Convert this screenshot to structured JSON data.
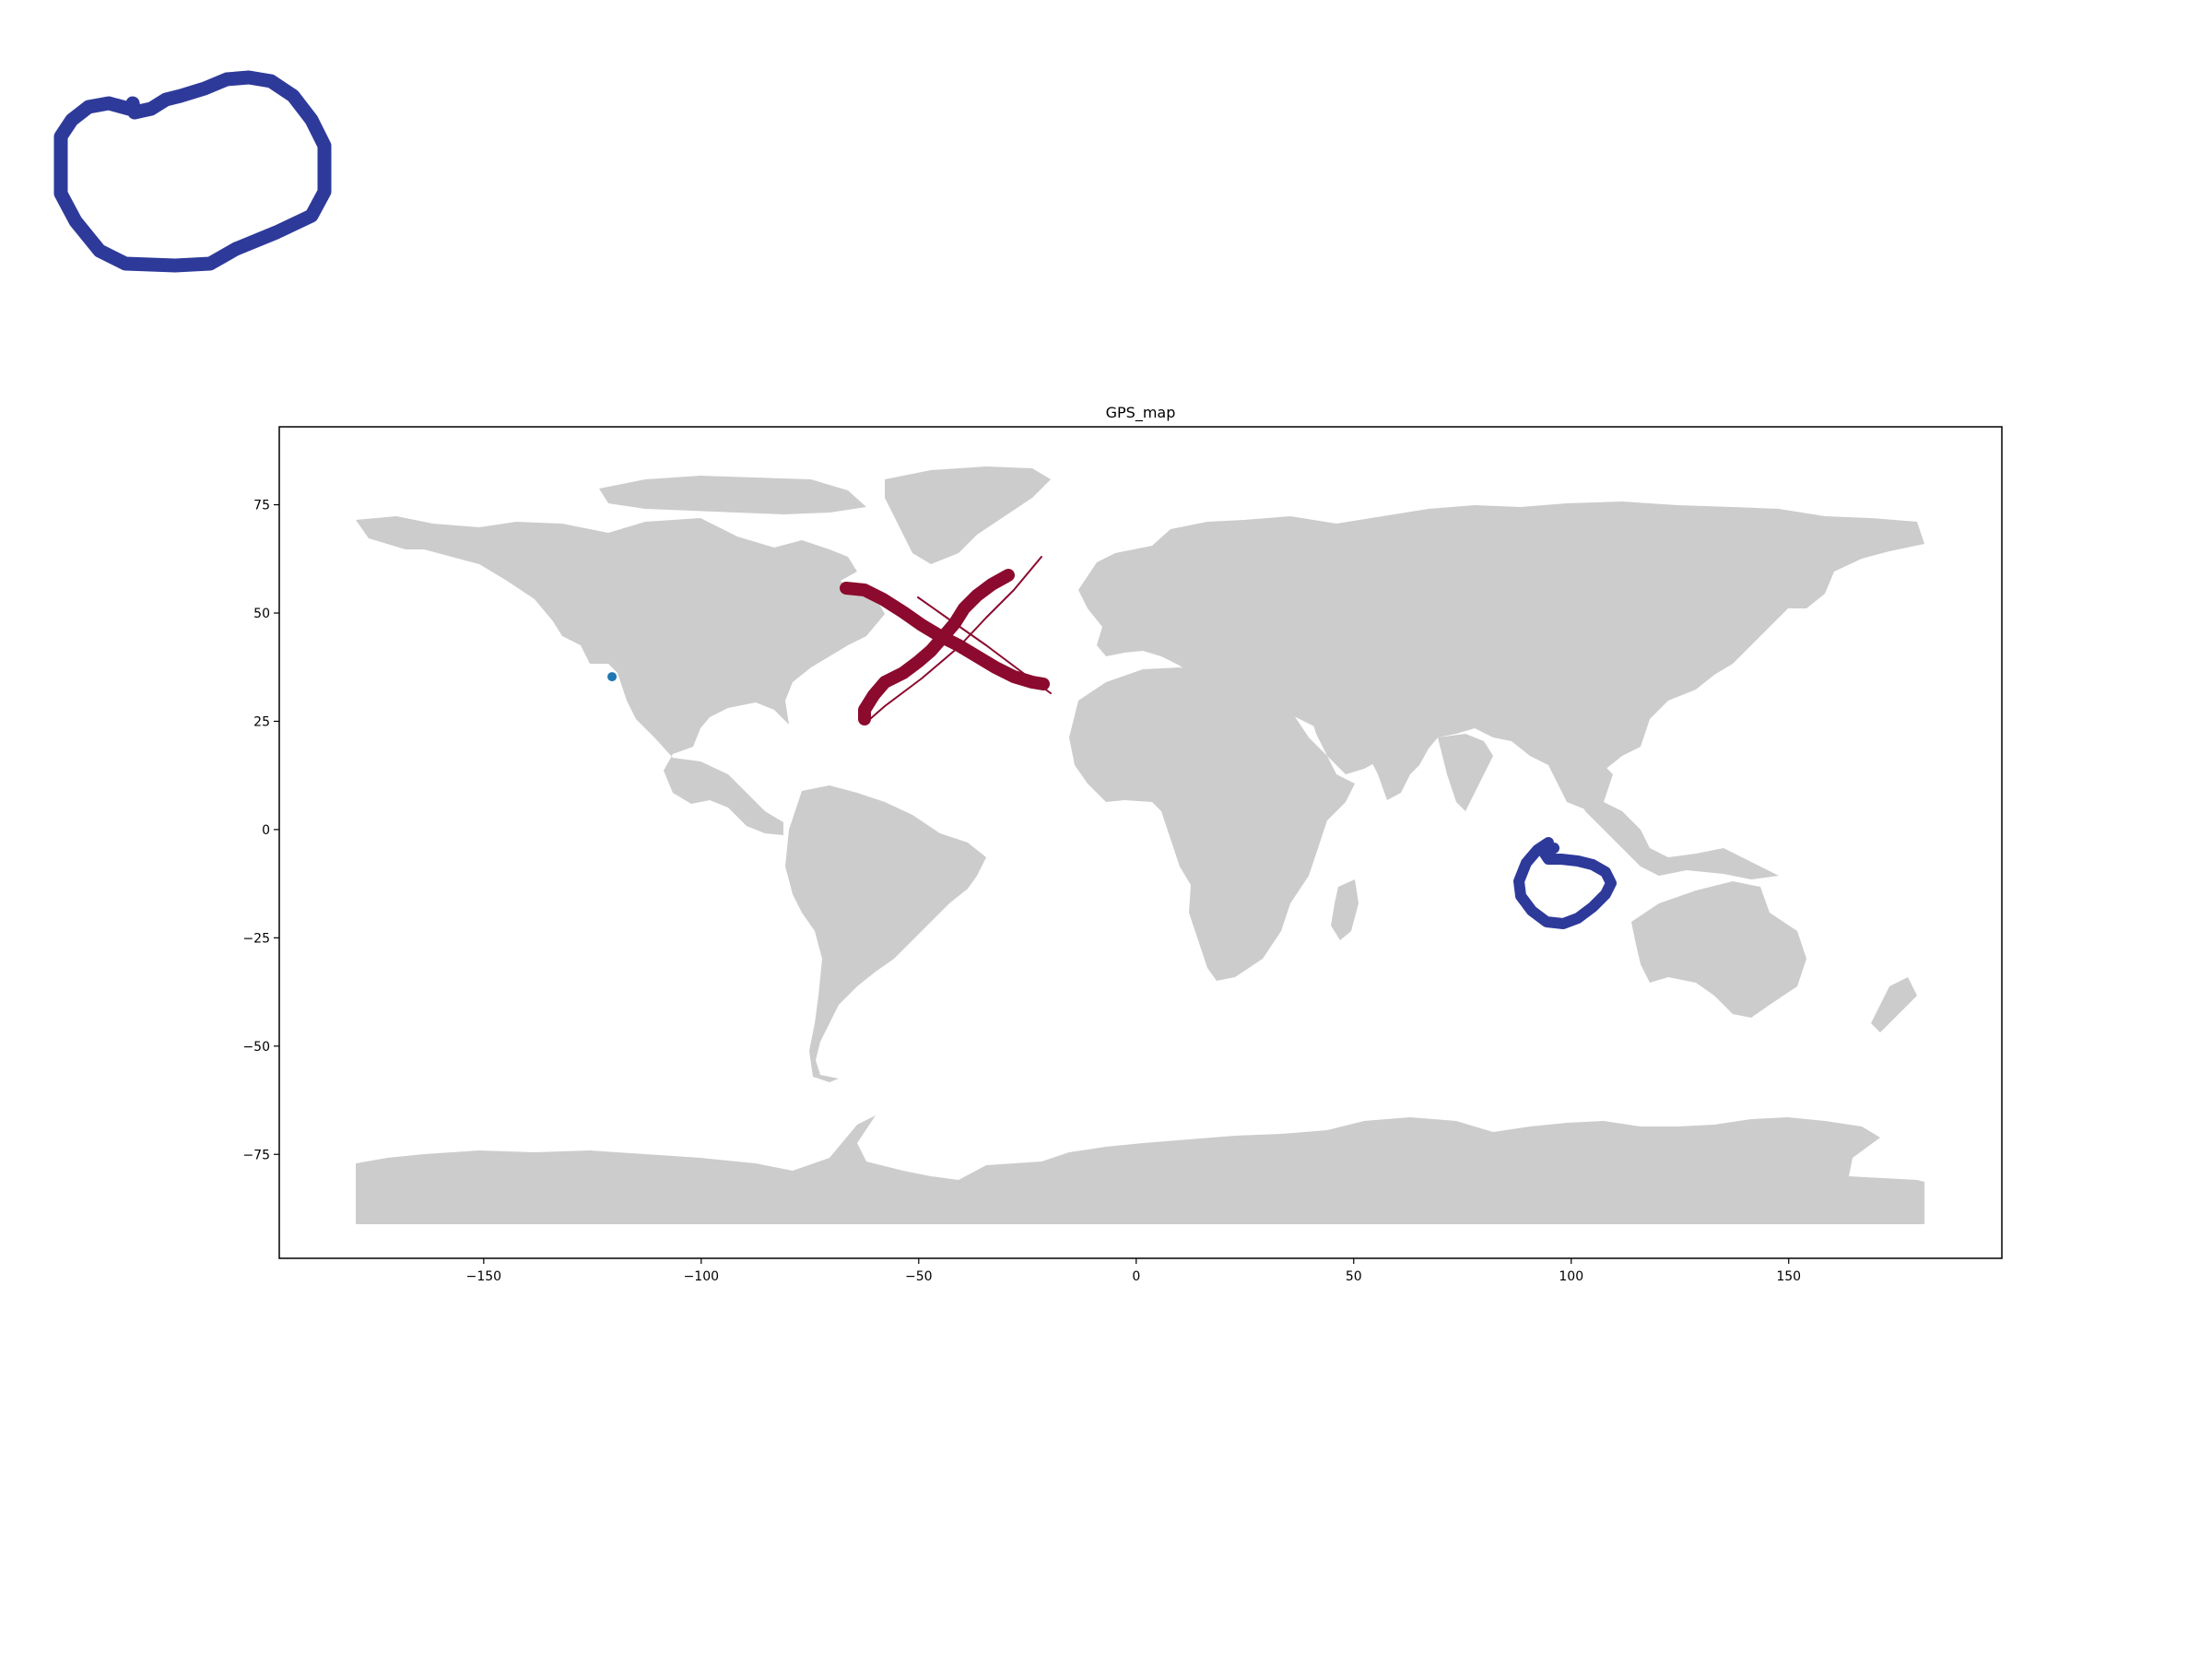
{
  "chart_data": {
    "type": "scatter",
    "title": "GPS_map",
    "xlabel": "",
    "ylabel": "",
    "xlim": [
      -197,
      199
    ],
    "ylim": [
      -99,
      93
    ],
    "x_ticks": [
      -150,
      -100,
      -50,
      0,
      50,
      100,
      150
    ],
    "y_ticks": [
      -75,
      -50,
      -25,
      0,
      25,
      50,
      75
    ],
    "x_tick_labels": [
      "−150",
      "−100",
      "−50",
      "0",
      "50",
      "100",
      "150"
    ],
    "y_tick_labels": [
      "−75",
      "−50",
      "−25",
      "0",
      "25",
      "50",
      "75"
    ],
    "grid": false,
    "basemap": "world land polygons",
    "points": [
      {
        "lon": -120.5,
        "lat": 35.3
      }
    ],
    "annotations": [
      {
        "kind": "hand-drawn X",
        "color": "#8b0a2e",
        "center_lon": -45,
        "center_lat": 44
      },
      {
        "kind": "hand-drawn loop",
        "color": "#2e3a9a",
        "center_lon": 97,
        "center_lat": -13
      },
      {
        "kind": "hand-drawn loop outside axes",
        "color": "#2e3a9a",
        "position": "top-left"
      }
    ]
  },
  "colors": {
    "land": "#cccccc",
    "point": "#1f77b4",
    "x_mark": "#8b0a2e",
    "loop": "#2e3a9a",
    "frame": "#000000",
    "background": "#ffffff"
  }
}
